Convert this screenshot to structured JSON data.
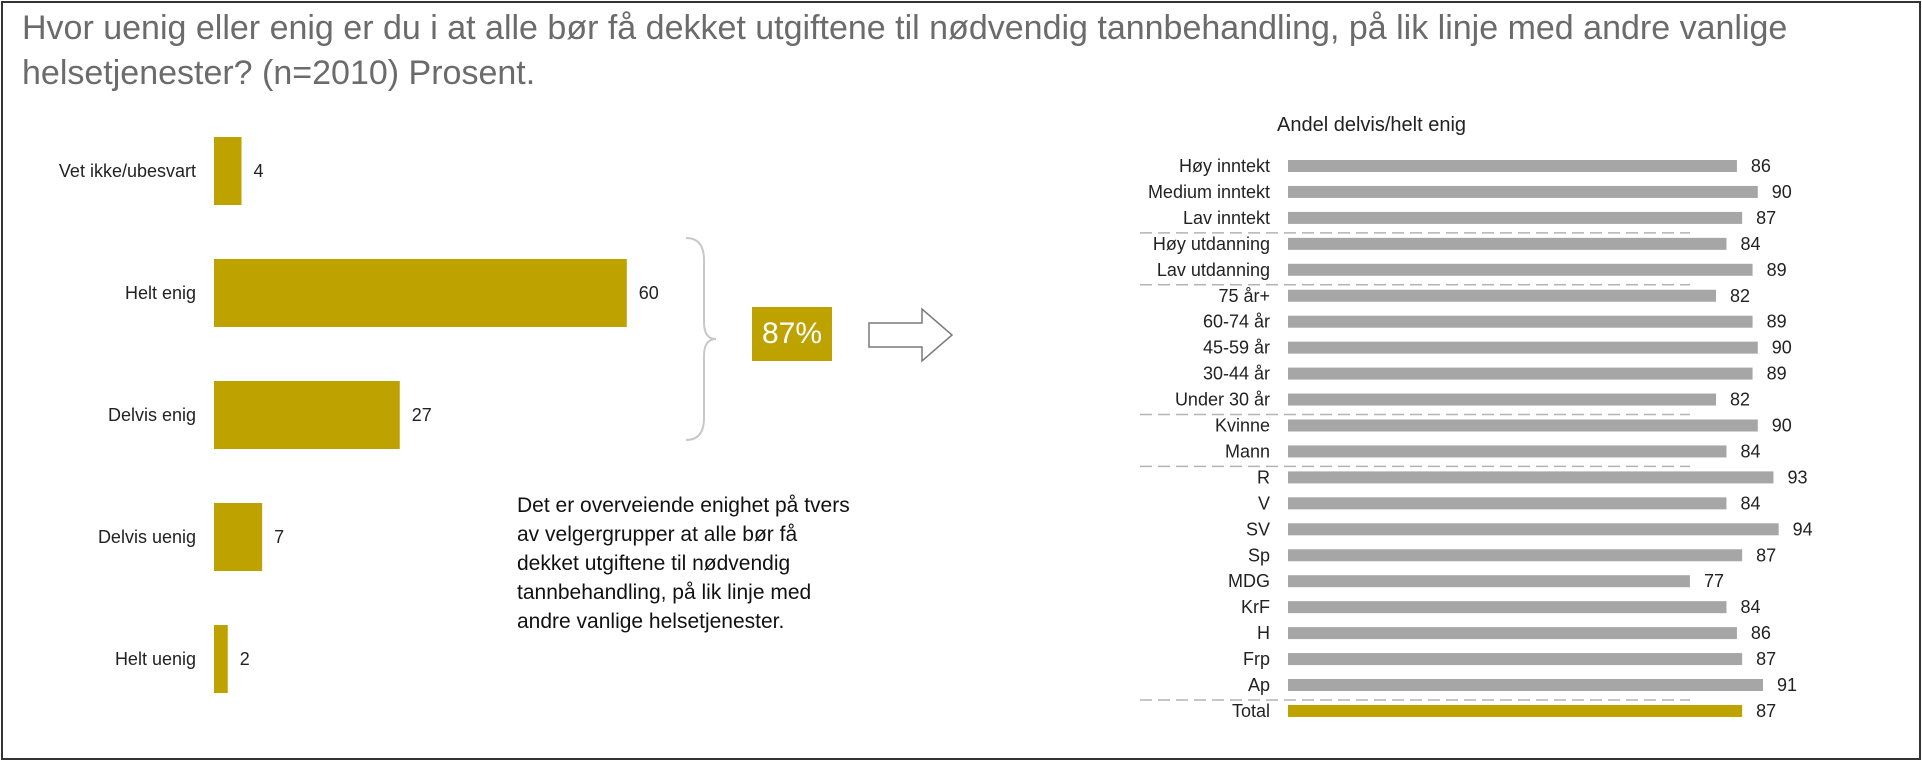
{
  "title": "Hvor uenig eller enig er du i at alle bør få dekket utgiftene til nødvendig tannbehandling, på lik linje med andre vanlige helsetjenester? (n=2010) Prosent.",
  "summary_badge": "87%",
  "note": "Det er overveiende enighet på tvers av velgergrupper at alle bør få dekket utgiftene til nødvendig tannbehandling, på lik linje med andre vanlige helsetjenester.",
  "colors": {
    "gold": "#bea200",
    "gray": "#a6a6a6",
    "title": "#6b6b6b"
  },
  "icons": {
    "brace": "brace-icon",
    "arrow": "arrow-right-icon"
  },
  "chart_data": [
    {
      "type": "bar",
      "orientation": "horizontal",
      "categories": [
        "Vet ikke/ubesvart",
        "Helt enig",
        "Delvis enig",
        "Delvis uenig",
        "Helt uenig"
      ],
      "values": [
        4,
        60,
        27,
        7,
        2
      ],
      "xlim": [
        0,
        100
      ],
      "grid": false
    },
    {
      "type": "bar",
      "orientation": "horizontal",
      "title": "Andel delvis/helt enig",
      "categories": [
        "Høy inntekt",
        "Medium inntekt",
        "Lav inntekt",
        "Høy utdanning",
        "Lav utdanning",
        "75 år+",
        "60-74 år",
        "45-59 år",
        "30-44 år",
        "Under 30 år",
        "Kvinne",
        "Mann",
        "R",
        "V",
        "SV",
        "Sp",
        "MDG",
        "KrF",
        "H",
        "Frp",
        "Ap",
        "Total"
      ],
      "values": [
        86,
        90,
        87,
        84,
        89,
        82,
        89,
        90,
        89,
        82,
        90,
        84,
        93,
        84,
        94,
        87,
        77,
        84,
        86,
        87,
        91,
        87
      ],
      "highlight": "Total",
      "xlim": [
        0,
        100
      ],
      "grid": false
    }
  ]
}
